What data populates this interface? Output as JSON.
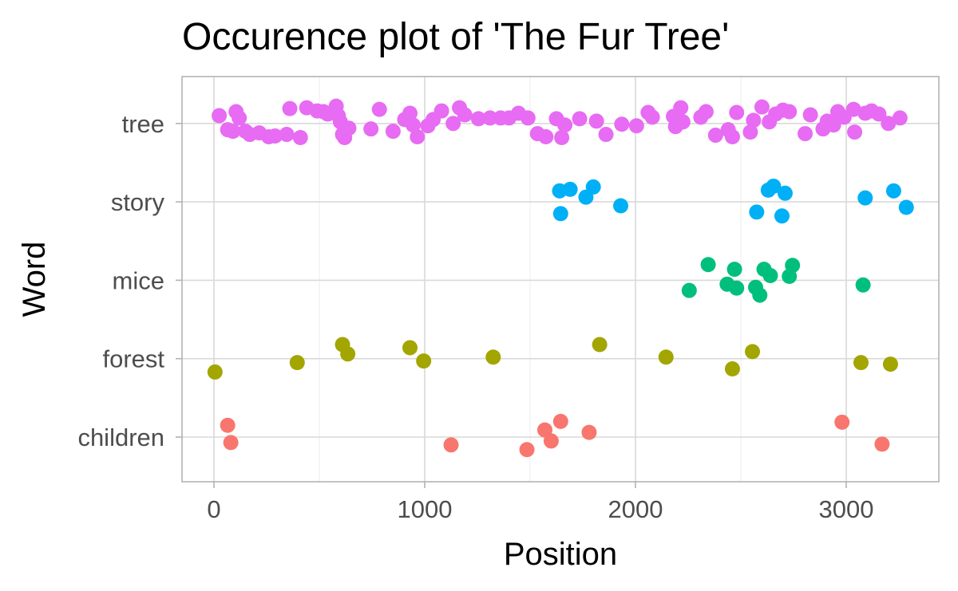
{
  "chart_data": {
    "type": "scatter",
    "title": "Occurence plot of 'The Fur Tree'",
    "xlabel": "Position",
    "ylabel": "Word",
    "xlim": [
      -150,
      3440
    ],
    "x_ticks": [
      0,
      1000,
      2000,
      3000
    ],
    "x_tick_labels": [
      "0",
      "1000",
      "2000",
      "3000"
    ],
    "categories": [
      "children",
      "forest",
      "mice",
      "story",
      "tree"
    ],
    "grid": true,
    "legend": "none",
    "series": [
      {
        "name": "children",
        "color": "#F8766D",
        "points": [
          {
            "x": 65,
            "y": 0.15
          },
          {
            "x": 80,
            "y": -0.07
          },
          {
            "x": 1125,
            "y": -0.1
          },
          {
            "x": 1485,
            "y": -0.16
          },
          {
            "x": 1570,
            "y": 0.09
          },
          {
            "x": 1600,
            "y": -0.05
          },
          {
            "x": 1645,
            "y": 0.2
          },
          {
            "x": 1780,
            "y": 0.06
          },
          {
            "x": 2980,
            "y": 0.19
          },
          {
            "x": 3170,
            "y": -0.09
          }
        ]
      },
      {
        "name": "forest",
        "color": "#A3A500",
        "points": [
          {
            "x": 5,
            "y": -0.17
          },
          {
            "x": 395,
            "y": -0.05
          },
          {
            "x": 610,
            "y": 0.18
          },
          {
            "x": 635,
            "y": 0.06
          },
          {
            "x": 930,
            "y": 0.14
          },
          {
            "x": 995,
            "y": -0.03
          },
          {
            "x": 1325,
            "y": 0.02
          },
          {
            "x": 1830,
            "y": 0.18
          },
          {
            "x": 2145,
            "y": 0.02
          },
          {
            "x": 2460,
            "y": -0.13
          },
          {
            "x": 2555,
            "y": 0.09
          },
          {
            "x": 3070,
            "y": -0.05
          },
          {
            "x": 3210,
            "y": -0.07
          }
        ]
      },
      {
        "name": "mice",
        "color": "#00BF7D",
        "points": [
          {
            "x": 2255,
            "y": -0.13
          },
          {
            "x": 2345,
            "y": 0.2
          },
          {
            "x": 2435,
            "y": -0.05
          },
          {
            "x": 2470,
            "y": 0.14
          },
          {
            "x": 2480,
            "y": -0.1
          },
          {
            "x": 2570,
            "y": -0.09
          },
          {
            "x": 2590,
            "y": -0.19
          },
          {
            "x": 2610,
            "y": 0.14
          },
          {
            "x": 2640,
            "y": 0.06
          },
          {
            "x": 2730,
            "y": 0.05
          },
          {
            "x": 2745,
            "y": 0.19
          },
          {
            "x": 3080,
            "y": -0.06
          }
        ]
      },
      {
        "name": "story",
        "color": "#00B0F6",
        "points": [
          {
            "x": 1640,
            "y": 0.14
          },
          {
            "x": 1645,
            "y": -0.15
          },
          {
            "x": 1690,
            "y": 0.16
          },
          {
            "x": 1765,
            "y": 0.06
          },
          {
            "x": 1800,
            "y": 0.19
          },
          {
            "x": 1930,
            "y": -0.05
          },
          {
            "x": 2575,
            "y": -0.13
          },
          {
            "x": 2630,
            "y": 0.15
          },
          {
            "x": 2655,
            "y": 0.2
          },
          {
            "x": 2695,
            "y": -0.18
          },
          {
            "x": 2710,
            "y": 0.11
          },
          {
            "x": 3090,
            "y": 0.05
          },
          {
            "x": 3225,
            "y": 0.14
          },
          {
            "x": 3285,
            "y": -0.07
          }
        ]
      },
      {
        "name": "tree",
        "color": "#E76BF3",
        "points": [
          {
            "x": 25,
            "y": 0.1
          },
          {
            "x": 65,
            "y": -0.08
          },
          {
            "x": 90,
            "y": -0.1
          },
          {
            "x": 105,
            "y": 0.15
          },
          {
            "x": 120,
            "y": 0.07
          },
          {
            "x": 150,
            "y": -0.1
          },
          {
            "x": 170,
            "y": -0.14
          },
          {
            "x": 215,
            "y": -0.12
          },
          {
            "x": 260,
            "y": -0.17
          },
          {
            "x": 290,
            "y": -0.16
          },
          {
            "x": 345,
            "y": -0.14
          },
          {
            "x": 360,
            "y": 0.19
          },
          {
            "x": 410,
            "y": -0.18
          },
          {
            "x": 440,
            "y": 0.2
          },
          {
            "x": 490,
            "y": 0.16
          },
          {
            "x": 520,
            "y": 0.15
          },
          {
            "x": 540,
            "y": 0.12
          },
          {
            "x": 580,
            "y": 0.22
          },
          {
            "x": 590,
            "y": 0.1
          },
          {
            "x": 600,
            "y": 0.02
          },
          {
            "x": 610,
            "y": -0.14
          },
          {
            "x": 620,
            "y": -0.18
          },
          {
            "x": 640,
            "y": -0.06
          },
          {
            "x": 745,
            "y": -0.07
          },
          {
            "x": 785,
            "y": 0.18
          },
          {
            "x": 850,
            "y": -0.1
          },
          {
            "x": 905,
            "y": 0.05
          },
          {
            "x": 930,
            "y": 0.13
          },
          {
            "x": 945,
            "y": -0.02
          },
          {
            "x": 965,
            "y": -0.17
          },
          {
            "x": 1015,
            "y": -0.03
          },
          {
            "x": 1040,
            "y": 0.05
          },
          {
            "x": 1080,
            "y": 0.16
          },
          {
            "x": 1135,
            "y": 0.0
          },
          {
            "x": 1165,
            "y": 0.2
          },
          {
            "x": 1190,
            "y": 0.11
          },
          {
            "x": 1255,
            "y": 0.06
          },
          {
            "x": 1310,
            "y": 0.07
          },
          {
            "x": 1360,
            "y": 0.07
          },
          {
            "x": 1400,
            "y": 0.07
          },
          {
            "x": 1445,
            "y": 0.13
          },
          {
            "x": 1490,
            "y": 0.07
          },
          {
            "x": 1535,
            "y": -0.13
          },
          {
            "x": 1575,
            "y": -0.17
          },
          {
            "x": 1625,
            "y": 0.06
          },
          {
            "x": 1650,
            "y": -0.18
          },
          {
            "x": 1665,
            "y": -0.02
          },
          {
            "x": 1735,
            "y": 0.06
          },
          {
            "x": 1815,
            "y": 0.03
          },
          {
            "x": 1860,
            "y": -0.14
          },
          {
            "x": 1935,
            "y": -0.01
          },
          {
            "x": 2005,
            "y": -0.03
          },
          {
            "x": 2060,
            "y": 0.14
          },
          {
            "x": 2080,
            "y": 0.08
          },
          {
            "x": 2180,
            "y": 0.09
          },
          {
            "x": 2190,
            "y": -0.04
          },
          {
            "x": 2215,
            "y": 0.2
          },
          {
            "x": 2225,
            "y": 0.02
          },
          {
            "x": 2310,
            "y": 0.08
          },
          {
            "x": 2335,
            "y": 0.15
          },
          {
            "x": 2380,
            "y": -0.15
          },
          {
            "x": 2440,
            "y": -0.08
          },
          {
            "x": 2460,
            "y": -0.17
          },
          {
            "x": 2480,
            "y": 0.14
          },
          {
            "x": 2545,
            "y": -0.11
          },
          {
            "x": 2560,
            "y": 0.04
          },
          {
            "x": 2600,
            "y": 0.21
          },
          {
            "x": 2635,
            "y": 0.02
          },
          {
            "x": 2665,
            "y": 0.12
          },
          {
            "x": 2700,
            "y": 0.17
          },
          {
            "x": 2730,
            "y": 0.15
          },
          {
            "x": 2805,
            "y": -0.13
          },
          {
            "x": 2830,
            "y": 0.11
          },
          {
            "x": 2890,
            "y": -0.07
          },
          {
            "x": 2910,
            "y": 0.03
          },
          {
            "x": 2940,
            "y": -0.02
          },
          {
            "x": 2960,
            "y": 0.15
          },
          {
            "x": 2990,
            "y": 0.08
          },
          {
            "x": 3035,
            "y": 0.18
          },
          {
            "x": 3040,
            "y": -0.11
          },
          {
            "x": 3090,
            "y": 0.13
          },
          {
            "x": 3120,
            "y": 0.16
          },
          {
            "x": 3155,
            "y": 0.12
          },
          {
            "x": 3200,
            "y": 0.0
          },
          {
            "x": 3255,
            "y": 0.07
          }
        ]
      }
    ]
  }
}
